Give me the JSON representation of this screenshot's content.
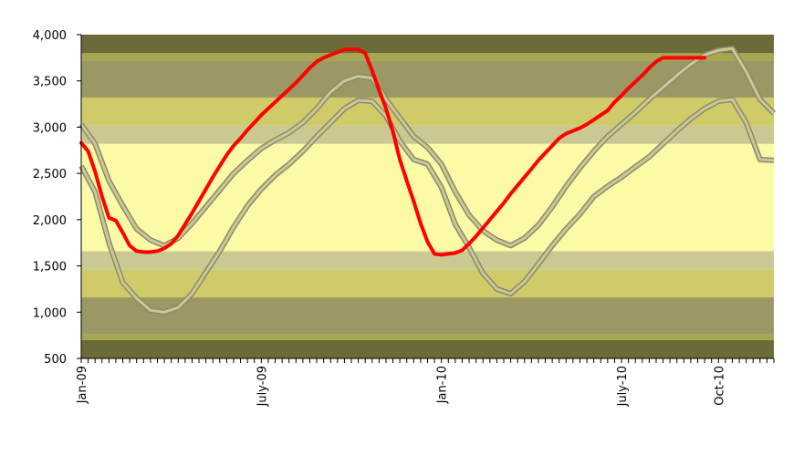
{
  "chart_data": {
    "type": "line",
    "title": "",
    "xlabel": "",
    "ylabel": "",
    "ylim": [
      500,
      4000
    ],
    "grid": false,
    "legend": "none",
    "y_ticks": [
      500,
      1000,
      1500,
      2000,
      2500,
      3000,
      3500,
      4000
    ],
    "y_tick_labels": [
      "500",
      "1,000",
      "1,500",
      "2,000",
      "2,500",
      "3,000",
      "3,500",
      "4,000"
    ],
    "x_range_weeks": [
      0,
      100
    ],
    "x_tick_labels": [
      {
        "week": 0,
        "label": "Jan-09"
      },
      {
        "week": 26,
        "label": "July-09"
      },
      {
        "week": 52,
        "label": "Jan-10"
      },
      {
        "week": 78,
        "label": "July-10"
      },
      {
        "week": 92,
        "label": "Oct-10"
      }
    ],
    "background_bands": [
      {
        "from": 500,
        "to": 700,
        "color": "#6b6b3a"
      },
      {
        "from": 700,
        "to": 760,
        "color": "#a8a54f"
      },
      {
        "from": 760,
        "to": 1160,
        "color": "#9b9866"
      },
      {
        "from": 1160,
        "to": 1460,
        "color": "#cfcb69"
      },
      {
        "from": 1460,
        "to": 1660,
        "color": "#cbc992"
      },
      {
        "from": 1660,
        "to": 2820,
        "color": "#fcfaa6"
      },
      {
        "from": 2820,
        "to": 3020,
        "color": "#cbc992"
      },
      {
        "from": 3020,
        "to": 3320,
        "color": "#cfcb69"
      },
      {
        "from": 3320,
        "to": 3720,
        "color": "#9b9866"
      },
      {
        "from": 3720,
        "to": 3800,
        "color": "#a8a54f"
      },
      {
        "from": 3800,
        "to": 4000,
        "color": "#6b6b3a"
      }
    ],
    "series": [
      {
        "role": "upper-range",
        "color": "#c8c89a",
        "x": [
          0,
          2,
          4,
          6,
          8,
          10,
          12,
          14,
          16,
          18,
          20,
          22,
          24,
          26,
          28,
          30,
          32,
          34,
          36,
          38,
          40,
          42,
          44,
          46,
          48,
          50,
          52,
          54,
          56,
          58,
          60,
          62,
          64,
          66,
          68,
          70,
          72,
          74,
          76,
          78,
          80,
          82,
          84,
          86,
          88,
          90,
          92,
          94,
          96,
          98,
          100
        ],
        "values": [
          3030,
          2820,
          2420,
          2150,
          1900,
          1780,
          1720,
          1800,
          1960,
          2140,
          2320,
          2500,
          2640,
          2770,
          2860,
          2940,
          3050,
          3200,
          3380,
          3500,
          3550,
          3530,
          3300,
          3100,
          2900,
          2780,
          2600,
          2300,
          2050,
          1880,
          1780,
          1720,
          1800,
          1940,
          2140,
          2360,
          2560,
          2740,
          2900,
          3030,
          3160,
          3300,
          3430,
          3560,
          3680,
          3780,
          3830,
          3850,
          3600,
          3300,
          3150
        ]
      },
      {
        "role": "lower-range",
        "color": "#c8c89a",
        "x": [
          0,
          2,
          4,
          6,
          8,
          10,
          12,
          14,
          16,
          18,
          20,
          22,
          24,
          26,
          28,
          30,
          32,
          34,
          36,
          38,
          40,
          42,
          44,
          46,
          48,
          50,
          52,
          54,
          56,
          58,
          60,
          62,
          64,
          66,
          68,
          70,
          72,
          74,
          76,
          78,
          80,
          82,
          84,
          86,
          88,
          90,
          92,
          94,
          96,
          98,
          100
        ],
        "values": [
          2580,
          2300,
          1750,
          1320,
          1150,
          1020,
          1000,
          1050,
          1200,
          1430,
          1660,
          1920,
          2150,
          2330,
          2480,
          2600,
          2740,
          2900,
          3050,
          3200,
          3290,
          3280,
          3120,
          2850,
          2650,
          2600,
          2350,
          1950,
          1700,
          1420,
          1250,
          1200,
          1330,
          1520,
          1720,
          1900,
          2060,
          2250,
          2360,
          2460,
          2570,
          2680,
          2820,
          2960,
          3090,
          3200,
          3280,
          3300,
          3050,
          2650,
          2640
        ]
      },
      {
        "role": "current",
        "color": "#ff0000",
        "x": [
          0,
          1,
          2,
          3,
          4,
          5,
          6,
          7,
          8,
          9,
          10,
          11,
          12,
          13,
          14,
          15,
          16,
          17,
          18,
          19,
          20,
          21,
          22,
          23,
          24,
          25,
          26,
          27,
          28,
          29,
          30,
          31,
          32,
          33,
          34,
          35,
          36,
          37,
          38,
          39,
          40,
          41,
          42,
          43,
          44,
          45,
          46,
          47,
          48,
          49,
          50,
          51,
          52,
          53,
          54,
          55,
          56,
          57,
          58,
          59,
          60,
          61,
          62,
          63,
          64,
          65,
          66,
          67,
          68,
          69,
          70,
          71,
          72,
          73,
          74,
          75,
          76,
          77,
          78,
          79,
          80,
          81,
          82,
          83,
          84,
          85,
          86,
          87,
          88,
          89,
          90
        ],
        "values": [
          2830,
          2740,
          2520,
          2250,
          2020,
          1990,
          1860,
          1720,
          1660,
          1650,
          1650,
          1660,
          1690,
          1740,
          1830,
          1950,
          2070,
          2200,
          2330,
          2460,
          2580,
          2700,
          2800,
          2880,
          2970,
          3050,
          3130,
          3200,
          3270,
          3340,
          3410,
          3480,
          3560,
          3640,
          3710,
          3750,
          3780,
          3810,
          3840,
          3840,
          3840,
          3800,
          3610,
          3400,
          3200,
          2950,
          2650,
          2420,
          2200,
          1960,
          1760,
          1630,
          1620,
          1630,
          1640,
          1670,
          1740,
          1820,
          1910,
          2000,
          2090,
          2180,
          2280,
          2370,
          2460,
          2550,
          2640,
          2720,
          2800,
          2880,
          2930,
          2960,
          2990,
          3030,
          3080,
          3130,
          3180,
          3270,
          3340,
          3420,
          3490,
          3560,
          3640,
          3710,
          3750,
          3750,
          3750,
          3750,
          3750,
          3750,
          3750
        ]
      }
    ]
  }
}
